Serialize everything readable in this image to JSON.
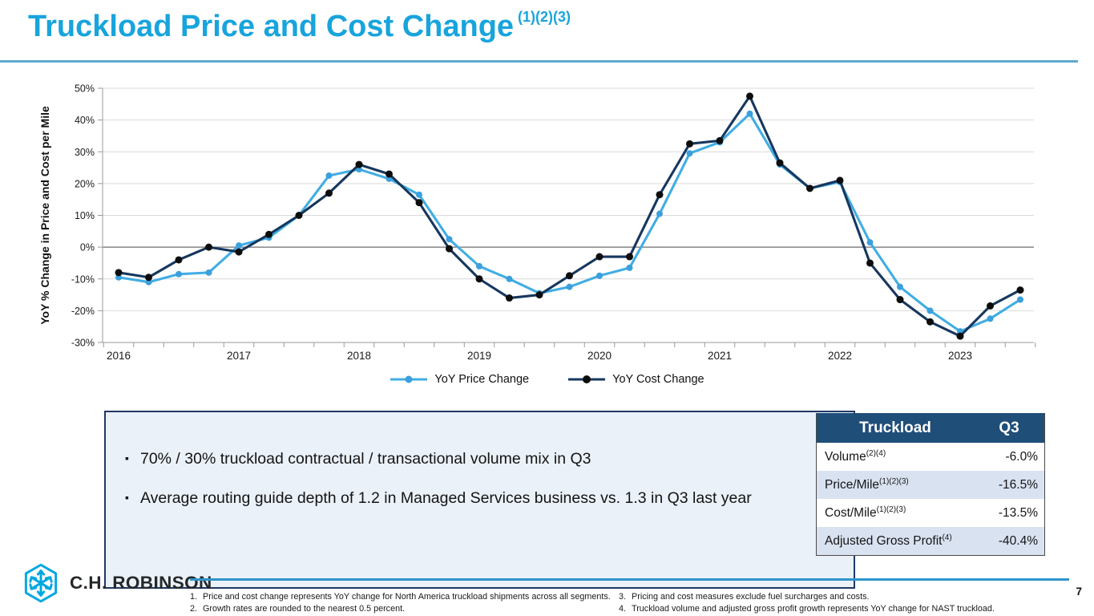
{
  "title": {
    "text": "Truckload Price and Cost Change",
    "sup": "(1)(2)(3)"
  },
  "colors": {
    "accent_cyan": "#18a4dc",
    "title_underline": "#5fa9cf",
    "price_line": "#41ade3",
    "price_marker": "#3ba0dd",
    "cost_line": "#17375e",
    "cost_marker": "#0d0d0d",
    "table_header_bg": "#1f4e79",
    "table_alt_row_bg": "#d9e2f1",
    "box_bg": "#ebf1f8",
    "box_border": "#1f3864",
    "footer_rule": "#2f95cc",
    "logo_cyan": "#00a7e1",
    "logo_text": "#25282a",
    "gridline": "#d9d9d9",
    "zero_line": "#6e6e6e",
    "axis": "#9a9a9a"
  },
  "chart_data": {
    "type": "line",
    "title": "",
    "xlabel": "",
    "ylabel": "YoY % Change in Price and Cost per Mile",
    "ylim": [
      -30,
      50
    ],
    "y_ticks": [
      50,
      40,
      30,
      20,
      10,
      0,
      -10,
      -20,
      -30
    ],
    "grid": "horizontal",
    "legend_position": "bottom-center",
    "categories": [
      "2016 Q1",
      "2016 Q2",
      "2016 Q3",
      "2016 Q4",
      "2017 Q1",
      "2017 Q2",
      "2017 Q3",
      "2017 Q4",
      "2018 Q1",
      "2018 Q2",
      "2018 Q3",
      "2018 Q4",
      "2019 Q1",
      "2019 Q2",
      "2019 Q3",
      "2019 Q4",
      "2020 Q1",
      "2020 Q2",
      "2020 Q3",
      "2020 Q4",
      "2021 Q1",
      "2021 Q2",
      "2021 Q3",
      "2021 Q4",
      "2022 Q1",
      "2022 Q2",
      "2022 Q3",
      "2022 Q4",
      "2023 Q1",
      "2023 Q2",
      "2023 Q3"
    ],
    "year_labels": [
      {
        "label": "2016",
        "index": 0
      },
      {
        "label": "2017",
        "index": 4
      },
      {
        "label": "2018",
        "index": 8
      },
      {
        "label": "2019",
        "index": 12
      },
      {
        "label": "2020",
        "index": 16
      },
      {
        "label": "2021",
        "index": 20
      },
      {
        "label": "2022",
        "index": 24
      },
      {
        "label": "2023",
        "index": 28
      }
    ],
    "series": [
      {
        "name": "YoY Price Change",
        "color": "#41ade3",
        "marker_color": "#3ba0dd",
        "values": [
          -9.5,
          -11,
          -8.5,
          -8,
          0.5,
          3,
          10,
          22.5,
          24.5,
          21.5,
          16.5,
          2.5,
          -6,
          -10,
          -14.5,
          -12.5,
          -9,
          -6.5,
          10.5,
          29.5,
          33,
          42,
          26,
          18.5,
          20.5,
          1.5,
          -12.5,
          -20,
          -26.5,
          -22.5,
          -16.5
        ]
      },
      {
        "name": "YoY Cost Change",
        "color": "#17375e",
        "marker_color": "#0d0d0d",
        "values": [
          -8,
          -9.5,
          -4,
          0,
          -1.5,
          4,
          10,
          17,
          26,
          23,
          14,
          -0.5,
          -10,
          -16,
          -15,
          -9,
          -3,
          -3,
          16.5,
          32.5,
          33.5,
          47.5,
          26.5,
          18.5,
          21,
          -5,
          -16.5,
          -23.5,
          -28,
          -18.5,
          -13.5
        ]
      }
    ]
  },
  "bullets": {
    "marker": "▪",
    "items": [
      "70% / 30% truckload contractual / transactional volume mix in Q3",
      "Average routing guide depth of 1.2 in Managed Services business vs. 1.3 in Q3 last year"
    ]
  },
  "table": {
    "header": {
      "col1": "Truckload",
      "col2": "Q3"
    },
    "rows": [
      {
        "label": "Volume",
        "sup": "(2)(4)",
        "value": "-6.0%"
      },
      {
        "label": "Price/Mile",
        "sup": "(1)(2)(3)",
        "value": "-16.5%"
      },
      {
        "label": "Cost/Mile",
        "sup": "(1)(2)(3)",
        "value": "-13.5%"
      },
      {
        "label": "Adjusted Gross Profit",
        "sup": "(4)",
        "value": "-40.4%"
      }
    ]
  },
  "footer": {
    "logo_text": "C.H. ROBINSON",
    "footnotes": [
      {
        "num": "1.",
        "text": "Price and cost change represents YoY change for North America truckload shipments across all segments."
      },
      {
        "num": "2.",
        "text": "Growth rates are rounded to the nearest 0.5 percent."
      },
      {
        "num": "3.",
        "text": "Pricing and cost measures exclude fuel surcharges and costs."
      },
      {
        "num": "4.",
        "text": "Truckload volume and adjusted gross profit growth represents YoY change for NAST truckload."
      }
    ],
    "page_number": "7"
  }
}
